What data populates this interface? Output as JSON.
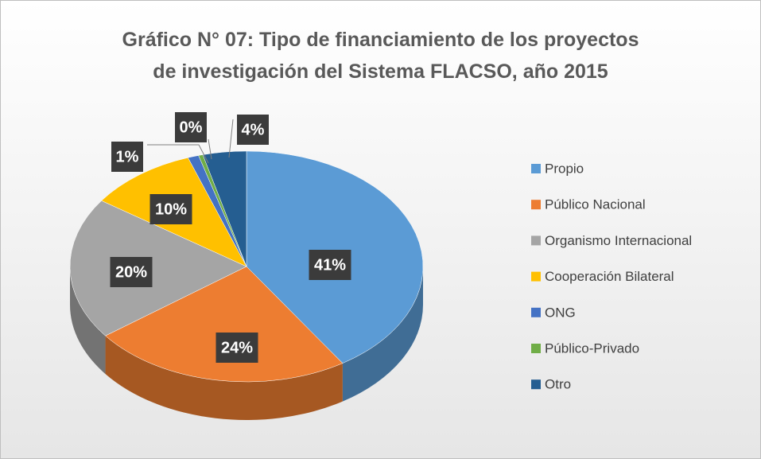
{
  "chart_data": {
    "type": "pie",
    "title": "Gráfico N° 07: Tipo de financiamiento de los proyectos\nde investigación del Sistema FLACSO, año 2015",
    "categories": [
      "Propio",
      "Público Nacional",
      "Organismo Internacional",
      "Cooperación Bilateral",
      "ONG",
      "Público-Privado",
      "Otro"
    ],
    "values": [
      41,
      24,
      20,
      10,
      1,
      0.4,
      4
    ],
    "value_labels": [
      "41%",
      "24%",
      "20%",
      "10%",
      "1%",
      "0%",
      "4%"
    ],
    "colors": [
      "#5b9bd5",
      "#ed7d31",
      "#a5a5a5",
      "#ffc000",
      "#4472c4",
      "#70ad47",
      "#255e91"
    ],
    "legend": "right"
  }
}
